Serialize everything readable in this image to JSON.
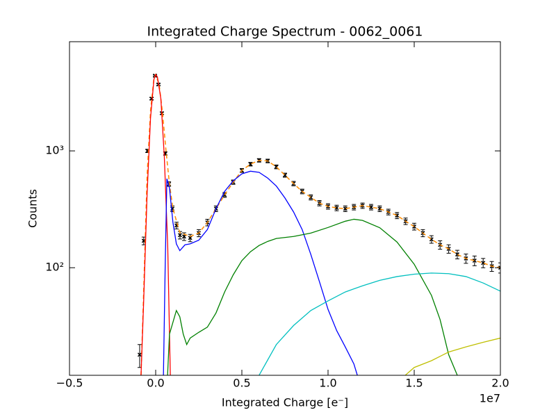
{
  "chart_data": {
    "type": "line",
    "title": "Integrated Charge Spectrum - 0062_0061",
    "x_label": "Integrated Charge [e⁻]",
    "y_label": "Counts",
    "x_offset_label": "1e7",
    "xlim": [
      -0.5,
      2.0
    ],
    "xticks": [
      {
        "value": -0.5,
        "label": "−0.5"
      },
      {
        "value": 0,
        "label": "0.0"
      },
      0.5,
      {
        "value": 1.0,
        "label": "1.0"
      },
      1.5,
      {
        "value": 2.0,
        "label": "2.0"
      }
    ],
    "ylim": [
      12,
      8600
    ],
    "yscale": "log",
    "yticks": [
      {
        "value": 100,
        "label": "10²"
      },
      {
        "value": 1000,
        "label": "10³"
      }
    ],
    "series": [
      {
        "color": "#000000",
        "style": "errorbar",
        "marker": "x",
        "x": [
          -0.093,
          -0.069,
          -0.048,
          -0.024,
          -0.004,
          0.016,
          0.036,
          0.056,
          0.077,
          0.097,
          0.121,
          0.141,
          0.165,
          0.2,
          0.25,
          0.3,
          0.35,
          0.4,
          0.45,
          0.5,
          0.55,
          0.6,
          0.65,
          0.7,
          0.75,
          0.8,
          0.85,
          0.9,
          0.95,
          1.0,
          1.05,
          1.1,
          1.15,
          1.2,
          1.25,
          1.3,
          1.35,
          1.4,
          1.45,
          1.5,
          1.55,
          1.6,
          1.65,
          1.7,
          1.75,
          1.8,
          1.85,
          1.9,
          1.95,
          2.0
        ],
        "values": [
          18,
          170,
          1000,
          2800,
          4400,
          3700,
          2100,
          950,
          520,
          320,
          230,
          190,
          185,
          180,
          198,
          244,
          320,
          420,
          540,
          680,
          770,
          830,
          820,
          730,
          620,
          525,
          450,
          400,
          357,
          335,
          325,
          320,
          330,
          340,
          330,
          320,
          300,
          280,
          250,
          225,
          198,
          175,
          157,
          145,
          130,
          120,
          115,
          110,
          103,
          100
        ],
        "errors": [
          4,
          13,
          32,
          53,
          66,
          61,
          46,
          31,
          23,
          18,
          15,
          14,
          14,
          13,
          14,
          16,
          18,
          20,
          23,
          26,
          28,
          29,
          29,
          27,
          25,
          23,
          21,
          20,
          19,
          18,
          18,
          18,
          18,
          18,
          18,
          18,
          17,
          17,
          16,
          15,
          14,
          13,
          13,
          12,
          11,
          11,
          11,
          10,
          10,
          10
        ]
      },
      {
        "color": "#ff8c00",
        "style": "dashed",
        "x": [
          -0.085,
          -0.07,
          -0.05,
          -0.03,
          -0.01,
          0.0,
          0.02,
          0.04,
          0.06,
          0.08,
          0.1,
          0.14,
          0.2,
          0.25,
          0.3,
          0.35,
          0.4,
          0.45,
          0.5,
          0.55,
          0.6,
          0.65,
          0.7,
          0.75,
          0.8,
          0.85,
          0.9,
          0.95,
          1.0,
          1.05,
          1.1,
          1.15,
          1.2,
          1.25,
          1.3,
          1.35,
          1.4,
          1.45,
          1.5,
          1.55,
          1.6,
          1.65,
          1.7,
          1.75,
          1.8,
          1.85,
          1.9,
          1.95,
          2.0
        ],
        "values": [
          12,
          60,
          600,
          2200,
          4200,
          4500,
          3700,
          2100,
          1000,
          520,
          320,
          200,
          185,
          198,
          244,
          320,
          420,
          540,
          680,
          770,
          830,
          820,
          730,
          620,
          525,
          450,
          400,
          357,
          335,
          325,
          320,
          330,
          340,
          330,
          320,
          300,
          280,
          250,
          225,
          198,
          175,
          157,
          145,
          130,
          120,
          115,
          110,
          103,
          100
        ]
      },
      {
        "color": "#ff0000",
        "style": "solid",
        "x": [
          -0.085,
          -0.07,
          -0.05,
          -0.03,
          -0.01,
          0.0,
          0.01,
          0.03,
          0.05,
          0.07,
          0.085
        ],
        "values": [
          12,
          50,
          420,
          1900,
          4100,
          4500,
          4300,
          2800,
          900,
          150,
          12
        ]
      },
      {
        "color": "#0000ff",
        "style": "solid",
        "x": [
          0.045,
          0.055,
          0.065,
          0.08,
          0.1,
          0.12,
          0.14,
          0.17,
          0.2,
          0.25,
          0.3,
          0.35,
          0.4,
          0.45,
          0.5,
          0.55,
          0.6,
          0.65,
          0.7,
          0.75,
          0.8,
          0.85,
          0.9,
          0.95,
          1.0,
          1.05,
          1.1,
          1.15,
          1.17
        ],
        "values": [
          12,
          100,
          578,
          480,
          245,
          160,
          140,
          157,
          160,
          172,
          212,
          320,
          450,
          555,
          636,
          670,
          655,
          585,
          500,
          395,
          300,
          212,
          130,
          76,
          44,
          29,
          21,
          15,
          12
        ]
      },
      {
        "color": "#008000",
        "style": "solid",
        "x": [
          0.069,
          0.08,
          0.12,
          0.14,
          0.16,
          0.18,
          0.2,
          0.25,
          0.3,
          0.35,
          0.4,
          0.45,
          0.5,
          0.55,
          0.6,
          0.65,
          0.7,
          0.8,
          0.9,
          1.0,
          1.1,
          1.15,
          1.2,
          1.3,
          1.4,
          1.5,
          1.6,
          1.65,
          1.7,
          1.75
        ],
        "values": [
          12,
          27,
          43,
          38,
          27,
          22,
          25,
          28,
          31,
          41,
          62,
          87,
          115,
          137,
          155,
          168,
          178,
          185,
          198,
          221,
          250,
          260,
          254,
          220,
          166,
          107,
          58,
          36,
          18,
          12
        ]
      },
      {
        "color": "#00bfbf",
        "style": "solid",
        "x": [
          0.6,
          0.7,
          0.8,
          0.9,
          1.0,
          1.1,
          1.2,
          1.3,
          1.4,
          1.5,
          1.6,
          1.7,
          1.8,
          1.9,
          2.0
        ],
        "values": [
          12,
          22,
          32,
          43,
          52,
          62,
          70,
          78,
          84,
          88,
          90,
          89,
          84,
          74,
          63
        ]
      },
      {
        "color": "#bfbf00",
        "style": "solid",
        "x": [
          1.448,
          1.5,
          1.6,
          1.7,
          1.8,
          1.9,
          2.0
        ],
        "values": [
          12,
          14,
          16,
          19,
          21,
          23,
          25
        ]
      }
    ]
  }
}
